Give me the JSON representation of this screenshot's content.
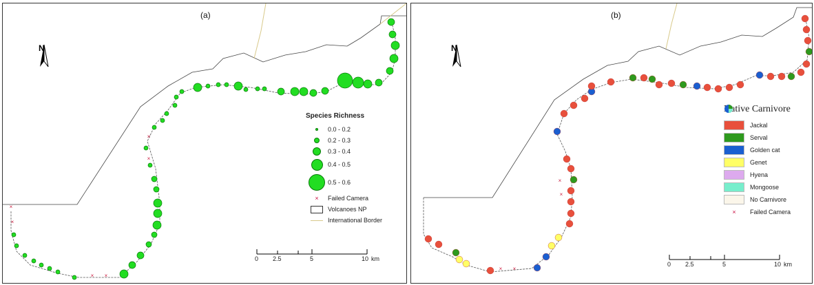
{
  "panel_a": {
    "label": "(a)",
    "north": "N",
    "legend_title": "Species Richness",
    "legend_classes": [
      "0.0 - 0.2",
      "0.2 - 0.3",
      "0.3 - 0.4",
      "0.4 - 0.5",
      "0.5 - 0.6"
    ],
    "legend_failed": "Failed Camera",
    "legend_np": "Volcanoes NP",
    "legend_border": "International Border",
    "scale_ticks": [
      "0",
      "2.5",
      "5",
      "10"
    ],
    "scale_unit": "km",
    "colors": {
      "dot_fill": "#22dd22",
      "dot_stroke": "#0a7a0a",
      "border_line": "#d8c98a",
      "failed": "#cc2244"
    }
  },
  "panel_b": {
    "label": "(b)",
    "north": "N",
    "legend_title": "Native Carnivore",
    "legend_items": [
      {
        "label": "Jackal",
        "color": "#e8503c"
      },
      {
        "label": "Serval",
        "color": "#2e9a1e"
      },
      {
        "label": "Golden cat",
        "color": "#1a5fd0"
      },
      {
        "label": "Genet",
        "color": "#ffff66"
      },
      {
        "label": "Hyena",
        "color": "#ddaaee"
      },
      {
        "label": "Mongoose",
        "color": "#77eecc"
      },
      {
        "label": "No Carnivore",
        "color": "#fbf6ea"
      }
    ],
    "legend_failed": "Failed Camera",
    "scale_ticks": [
      "0",
      "2.5",
      "5",
      "10"
    ],
    "scale_unit": "km"
  }
}
